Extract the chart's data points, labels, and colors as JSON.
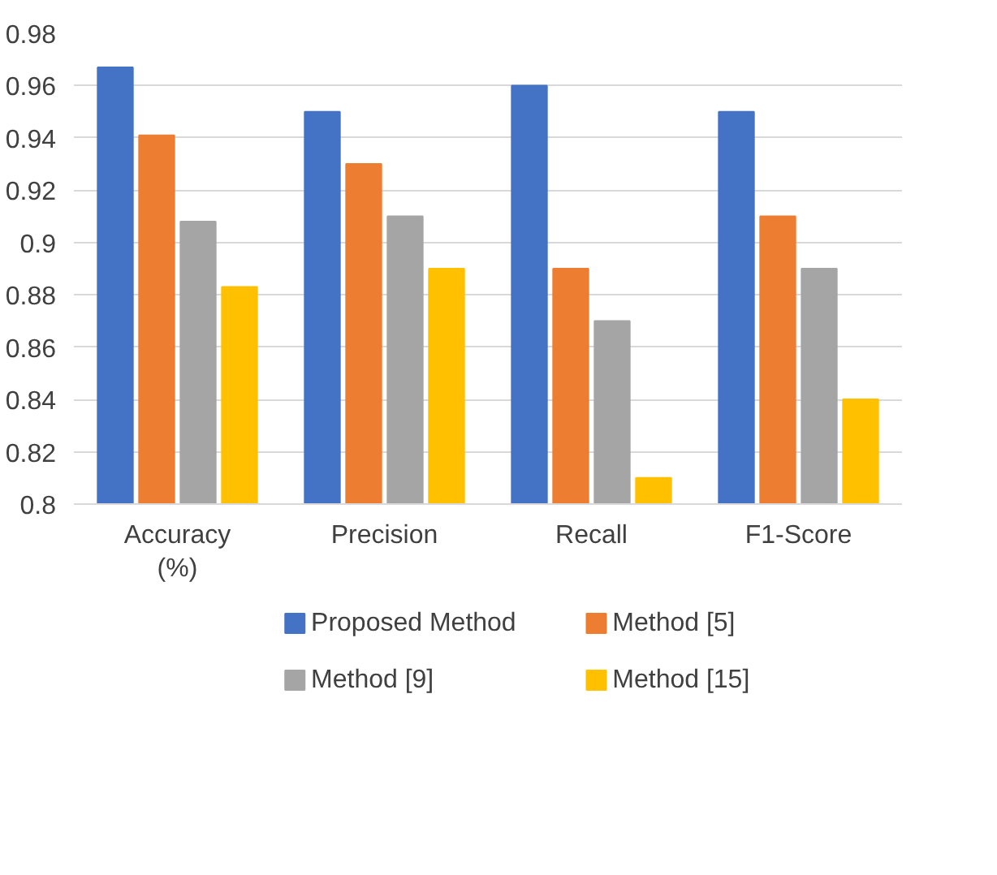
{
  "chart_data": {
    "type": "bar",
    "categories": [
      "Accuracy (%)",
      "Precision",
      "Recall",
      "F1-Score"
    ],
    "series": [
      {
        "name": "Proposed Method",
        "color": "#4472c4",
        "values": [
          0.967,
          0.95,
          0.96,
          0.95
        ]
      },
      {
        "name": "Method [5]",
        "color": "#ed7d31",
        "values": [
          0.941,
          0.93,
          0.89,
          0.91
        ]
      },
      {
        "name": "Method [9]",
        "color": "#a5a5a5",
        "values": [
          0.908,
          0.91,
          0.87,
          0.89
        ]
      },
      {
        "name": "Method [15]",
        "color": "#ffc000",
        "values": [
          0.883,
          0.89,
          0.81,
          0.84
        ]
      }
    ],
    "ylim": [
      0.8,
      0.98
    ],
    "yticks": [
      0.8,
      0.82,
      0.84,
      0.86,
      0.88,
      0.9,
      0.92,
      0.94,
      0.96,
      0.98
    ],
    "grid": "y",
    "legend": "bottom"
  }
}
